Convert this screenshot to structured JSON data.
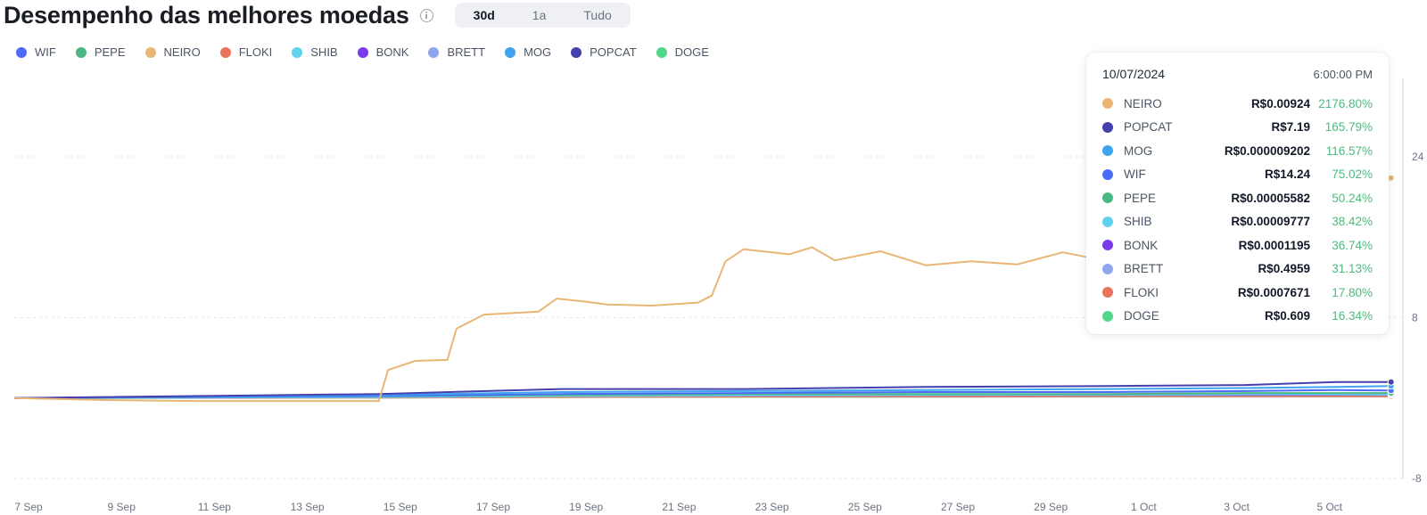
{
  "header": {
    "title": "Desempenho das melhores moedas",
    "ranges": [
      {
        "label": "30d",
        "active": true
      },
      {
        "label": "1a",
        "active": false
      },
      {
        "label": "Tudo",
        "active": false
      }
    ]
  },
  "legend": [
    {
      "name": "WIF",
      "color": "#4a6cf7"
    },
    {
      "name": "PEPE",
      "color": "#4cb782"
    },
    {
      "name": "NEIRO",
      "color": "#e9b676"
    },
    {
      "name": "FLOKI",
      "color": "#e8735a"
    },
    {
      "name": "SHIB",
      "color": "#5fd3ec"
    },
    {
      "name": "BONK",
      "color": "#7c3aed"
    },
    {
      "name": "BRETT",
      "color": "#8ea6ee"
    },
    {
      "name": "MOG",
      "color": "#3fa4ef"
    },
    {
      "name": "POPCAT",
      "color": "#463fae"
    },
    {
      "name": "DOGE",
      "color": "#4fd68a"
    }
  ],
  "tooltip": {
    "date": "10/07/2024",
    "time": "6:00:00 PM",
    "rows": [
      {
        "name": "NEIRO",
        "color": "#e9b676",
        "price": "R$0.00924",
        "change": "2176.80%"
      },
      {
        "name": "POPCAT",
        "color": "#463fae",
        "price": "R$7.19",
        "change": "165.79%"
      },
      {
        "name": "MOG",
        "color": "#3fa4ef",
        "price": "R$0.000009202",
        "change": "116.57%"
      },
      {
        "name": "WIF",
        "color": "#4a6cf7",
        "price": "R$14.24",
        "change": "75.02%"
      },
      {
        "name": "PEPE",
        "color": "#4cb782",
        "price": "R$0.00005582",
        "change": "50.24%"
      },
      {
        "name": "SHIB",
        "color": "#5fd3ec",
        "price": "R$0.00009777",
        "change": "38.42%"
      },
      {
        "name": "BONK",
        "color": "#7c3aed",
        "price": "R$0.0001195",
        "change": "36.74%"
      },
      {
        "name": "BRETT",
        "color": "#8ea6ee",
        "price": "R$0.4959",
        "change": "31.13%"
      },
      {
        "name": "FLOKI",
        "color": "#e8735a",
        "price": "R$0.0007671",
        "change": "17.80%"
      },
      {
        "name": "DOGE",
        "color": "#4fd68a",
        "price": "R$0.609",
        "change": "16.34%"
      }
    ]
  },
  "chart_data": {
    "type": "line",
    "x_ticks": [
      "7 Sep",
      "9 Sep",
      "11 Sep",
      "13 Sep",
      "15 Sep",
      "17 Sep",
      "19 Sep",
      "21 Sep",
      "23 Sep",
      "25 Sep",
      "27 Sep",
      "29 Sep",
      "1 Oct",
      "3 Oct",
      "5 Oct"
    ],
    "y_ticks": [
      "24",
      "8",
      "-8"
    ],
    "y_tick_values": [
      24,
      8,
      -8
    ],
    "ylim": [
      -8,
      24
    ],
    "xlim_days": [
      0,
      30.5
    ],
    "grid": true,
    "series": [
      {
        "name": "NEIRO",
        "color": "#e9b676",
        "points": [
          [
            0,
            0
          ],
          [
            2,
            -0.2
          ],
          [
            4,
            -0.3
          ],
          [
            6,
            -0.3
          ],
          [
            8,
            -0.3
          ],
          [
            8.2,
            2.8
          ],
          [
            8.8,
            3.7
          ],
          [
            9.5,
            3.8
          ],
          [
            9.7,
            6.9
          ],
          [
            10.3,
            8.3
          ],
          [
            11.5,
            8.6
          ],
          [
            11.9,
            9.9
          ],
          [
            12.5,
            9.6
          ],
          [
            13,
            9.3
          ],
          [
            14,
            9.2
          ],
          [
            15,
            9.5
          ],
          [
            15.3,
            10.2
          ],
          [
            15.6,
            13.6
          ],
          [
            16,
            14.8
          ],
          [
            17,
            14.3
          ],
          [
            17.5,
            15
          ],
          [
            18,
            13.7
          ],
          [
            19,
            14.6
          ],
          [
            20,
            13.2
          ],
          [
            21,
            13.6
          ],
          [
            22,
            13.3
          ],
          [
            23,
            14.5
          ],
          [
            24,
            13.6
          ],
          [
            25,
            13.8
          ],
          [
            26,
            13.4
          ],
          [
            27,
            13.7
          ],
          [
            28,
            14.2
          ],
          [
            29,
            14.4
          ],
          [
            29.5,
            15.5
          ],
          [
            29.7,
            19
          ],
          [
            29.8,
            20.5
          ],
          [
            30,
            22.4
          ],
          [
            30.1,
            21.4
          ],
          [
            30.2,
            21.9
          ]
        ]
      },
      {
        "name": "POPCAT",
        "color": "#463fae",
        "points": [
          [
            0,
            0
          ],
          [
            8,
            0.4
          ],
          [
            12,
            0.9
          ],
          [
            16,
            0.9
          ],
          [
            20,
            1.1
          ],
          [
            24,
            1.2
          ],
          [
            27,
            1.3
          ],
          [
            29,
            1.6
          ],
          [
            30.2,
            1.6
          ]
        ]
      },
      {
        "name": "MOG",
        "color": "#3fa4ef",
        "points": [
          [
            0,
            0
          ],
          [
            8,
            0.3
          ],
          [
            12,
            0.6
          ],
          [
            16,
            0.7
          ],
          [
            20,
            0.8
          ],
          [
            24,
            0.9
          ],
          [
            27,
            1.0
          ],
          [
            29,
            1.1
          ],
          [
            30.2,
            1.2
          ]
        ]
      },
      {
        "name": "WIF",
        "color": "#4a6cf7",
        "points": [
          [
            0,
            0
          ],
          [
            8,
            0.2
          ],
          [
            12,
            0.4
          ],
          [
            16,
            0.5
          ],
          [
            20,
            0.6
          ],
          [
            24,
            0.6
          ],
          [
            27,
            0.7
          ],
          [
            29,
            0.8
          ],
          [
            30.2,
            0.75
          ]
        ]
      },
      {
        "name": "PEPE",
        "color": "#4cb782",
        "points": [
          [
            0,
            0
          ],
          [
            8,
            0.2
          ],
          [
            12,
            0.3
          ],
          [
            16,
            0.4
          ],
          [
            20,
            0.4
          ],
          [
            24,
            0.4
          ],
          [
            27,
            0.5
          ],
          [
            29,
            0.5
          ],
          [
            30.2,
            0.5
          ]
        ]
      },
      {
        "name": "SHIB",
        "color": "#5fd3ec",
        "points": [
          [
            0,
            0
          ],
          [
            8,
            0.1
          ],
          [
            12,
            0.2
          ],
          [
            16,
            0.3
          ],
          [
            20,
            0.3
          ],
          [
            24,
            0.35
          ],
          [
            27,
            0.4
          ],
          [
            29,
            0.4
          ],
          [
            30.2,
            0.38
          ]
        ]
      },
      {
        "name": "BONK",
        "color": "#7c3aed",
        "points": [
          [
            0,
            0
          ],
          [
            8,
            0.2
          ],
          [
            12,
            0.3
          ],
          [
            16,
            0.3
          ],
          [
            20,
            0.3
          ],
          [
            24,
            0.35
          ],
          [
            27,
            0.35
          ],
          [
            29,
            0.37
          ],
          [
            30.2,
            0.37
          ]
        ]
      },
      {
        "name": "BRETT",
        "color": "#8ea6ee",
        "points": [
          [
            0,
            0
          ],
          [
            8,
            0.1
          ],
          [
            12,
            0.2
          ],
          [
            16,
            0.25
          ],
          [
            20,
            0.3
          ],
          [
            24,
            0.3
          ],
          [
            27,
            0.3
          ],
          [
            29,
            0.31
          ],
          [
            30.2,
            0.31
          ]
        ]
      },
      {
        "name": "FLOKI",
        "color": "#e8735a",
        "points": [
          [
            0,
            0
          ],
          [
            8,
            0.05
          ],
          [
            12,
            0.1
          ],
          [
            16,
            0.15
          ],
          [
            20,
            0.15
          ],
          [
            24,
            0.17
          ],
          [
            27,
            0.18
          ],
          [
            29,
            0.18
          ],
          [
            30.2,
            0.18
          ]
        ]
      },
      {
        "name": "DOGE",
        "color": "#4fd68a",
        "points": [
          [
            0,
            0
          ],
          [
            8,
            0.05
          ],
          [
            12,
            0.1
          ],
          [
            16,
            0.12
          ],
          [
            20,
            0.14
          ],
          [
            24,
            0.15
          ],
          [
            27,
            0.16
          ],
          [
            29,
            0.16
          ],
          [
            30.2,
            0.16
          ]
        ]
      }
    ]
  }
}
